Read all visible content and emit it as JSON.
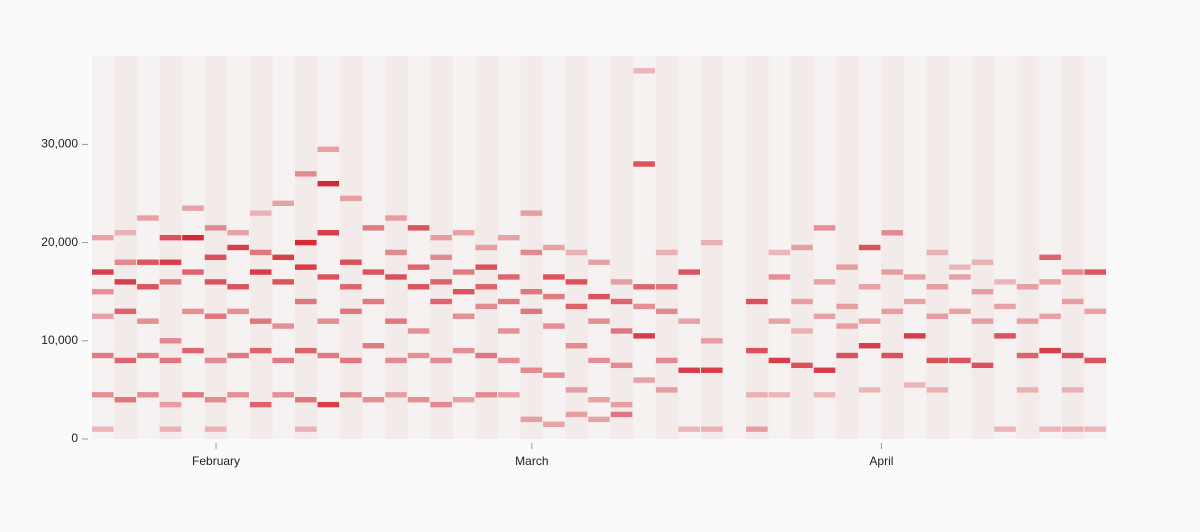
{
  "chart_data": {
    "type": "heatmap",
    "color": "#d42a37",
    "xlim": [
      0,
      90
    ],
    "xticks": [
      {
        "value": 11,
        "label": "February"
      },
      {
        "value": 39,
        "label": "March"
      },
      {
        "value": 70,
        "label": "April"
      }
    ],
    "ylim": [
      0,
      39000
    ],
    "yticks": [
      0,
      {
        "value": 10000,
        "label": "10,000"
      },
      {
        "value": 20000,
        "label": "20,000"
      },
      {
        "value": 30000,
        "label": "30,000"
      }
    ],
    "columns": [
      {
        "x": 0,
        "y": [
          17000,
          15000,
          12500,
          8500,
          4500,
          1000,
          20500
        ],
        "values": [
          0.9,
          0.5,
          0.4,
          0.6,
          0.5,
          0.3,
          0.4
        ]
      },
      {
        "x": 2,
        "y": [
          16000,
          18000,
          13000,
          8000,
          4000,
          21000
        ],
        "values": [
          0.9,
          0.5,
          0.7,
          0.7,
          0.6,
          0.3
        ]
      },
      {
        "x": 4,
        "y": [
          15500,
          18000,
          12000,
          8500,
          4500,
          22500
        ],
        "values": [
          0.8,
          0.8,
          0.5,
          0.6,
          0.5,
          0.4
        ]
      },
      {
        "x": 6,
        "y": [
          18000,
          16000,
          10000,
          8000,
          3500,
          20500,
          1000
        ],
        "values": [
          0.9,
          0.6,
          0.5,
          0.6,
          0.4,
          0.8,
          0.3
        ]
      },
      {
        "x": 8,
        "y": [
          20500,
          17000,
          13000,
          9000,
          4500,
          23500
        ],
        "values": [
          1,
          0.7,
          0.5,
          0.7,
          0.6,
          0.4
        ]
      },
      {
        "x": 10,
        "y": [
          16000,
          18500,
          12500,
          8000,
          4000,
          21500,
          1000
        ],
        "values": [
          0.8,
          0.8,
          0.6,
          0.5,
          0.5,
          0.5,
          0.3
        ]
      },
      {
        "x": 12,
        "y": [
          15500,
          19500,
          13000,
          8500,
          4500,
          21000
        ],
        "values": [
          0.8,
          0.9,
          0.5,
          0.6,
          0.5,
          0.4
        ]
      },
      {
        "x": 14,
        "y": [
          17000,
          19000,
          12000,
          9000,
          3500,
          23000
        ],
        "values": [
          0.9,
          0.6,
          0.6,
          0.7,
          0.7,
          0.3
        ]
      },
      {
        "x": 16,
        "y": [
          18500,
          16000,
          11500,
          8000,
          4500,
          24000
        ],
        "values": [
          0.9,
          0.8,
          0.5,
          0.6,
          0.5,
          0.4
        ]
      },
      {
        "x": 18,
        "y": [
          20000,
          17500,
          14000,
          9000,
          4000,
          27000,
          1000
        ],
        "values": [
          1,
          0.9,
          0.6,
          0.7,
          0.6,
          0.5,
          0.3
        ]
      },
      {
        "x": 20,
        "y": [
          26000,
          21000,
          16500,
          12000,
          8500,
          3500,
          29500
        ],
        "values": [
          1,
          0.9,
          0.8,
          0.5,
          0.6,
          0.9,
          0.4
        ]
      },
      {
        "x": 22,
        "y": [
          18000,
          15500,
          13000,
          8000,
          4500,
          24500
        ],
        "values": [
          0.8,
          0.7,
          0.6,
          0.6,
          0.5,
          0.4
        ]
      },
      {
        "x": 24,
        "y": [
          17000,
          21500,
          14000,
          9500,
          4000
        ],
        "values": [
          0.8,
          0.6,
          0.6,
          0.6,
          0.5
        ]
      },
      {
        "x": 26,
        "y": [
          16500,
          19000,
          12000,
          8000,
          4500,
          22500
        ],
        "values": [
          0.8,
          0.5,
          0.6,
          0.5,
          0.4,
          0.4
        ]
      },
      {
        "x": 28,
        "y": [
          15500,
          17500,
          11000,
          8500,
          4000,
          21500
        ],
        "values": [
          0.8,
          0.7,
          0.5,
          0.5,
          0.5,
          0.8
        ]
      },
      {
        "x": 30,
        "y": [
          16000,
          18500,
          14000,
          8000,
          3500,
          20500
        ],
        "values": [
          0.7,
          0.5,
          0.7,
          0.5,
          0.5,
          0.4
        ]
      },
      {
        "x": 32,
        "y": [
          15000,
          17000,
          12500,
          9000,
          4000,
          21000
        ],
        "values": [
          0.8,
          0.6,
          0.5,
          0.5,
          0.4,
          0.4
        ]
      },
      {
        "x": 34,
        "y": [
          15500,
          17500,
          13500,
          8500,
          4500,
          19500
        ],
        "values": [
          0.7,
          0.8,
          0.5,
          0.6,
          0.5,
          0.4
        ]
      },
      {
        "x": 36,
        "y": [
          16500,
          14000,
          11000,
          8000,
          4500,
          20500
        ],
        "values": [
          0.7,
          0.6,
          0.5,
          0.5,
          0.4,
          0.4
        ]
      },
      {
        "x": 38,
        "y": [
          15000,
          19000,
          13000,
          7000,
          2000,
          23000
        ],
        "values": [
          0.6,
          0.5,
          0.6,
          0.5,
          0.4,
          0.4
        ]
      },
      {
        "x": 40,
        "y": [
          16500,
          14500,
          11500,
          6500,
          1500,
          19500
        ],
        "values": [
          0.8,
          0.6,
          0.5,
          0.5,
          0.4,
          0.4
        ]
      },
      {
        "x": 42,
        "y": [
          16000,
          13500,
          9500,
          5000,
          2500,
          19000
        ],
        "values": [
          0.8,
          0.7,
          0.5,
          0.4,
          0.4,
          0.3
        ]
      },
      {
        "x": 44,
        "y": [
          14500,
          12000,
          8000,
          4000,
          2000,
          18000
        ],
        "values": [
          0.8,
          0.5,
          0.5,
          0.4,
          0.4,
          0.4
        ]
      },
      {
        "x": 46,
        "y": [
          14000,
          11000,
          7500,
          3500,
          2500,
          16000
        ],
        "values": [
          0.7,
          0.6,
          0.5,
          0.4,
          0.6,
          0.4
        ]
      },
      {
        "x": 48,
        "y": [
          10500,
          13500,
          15500,
          28000,
          6000,
          37500
        ],
        "values": [
          0.9,
          0.5,
          0.7,
          0.8,
          0.4,
          0.3
        ]
      },
      {
        "x": 50,
        "y": [
          13000,
          8000,
          15500,
          5000,
          19000
        ],
        "values": [
          0.5,
          0.5,
          0.6,
          0.4,
          0.3
        ]
      },
      {
        "x": 52,
        "y": [
          17000,
          7000,
          12000,
          1000
        ],
        "values": [
          0.8,
          0.9,
          0.4,
          0.3
        ]
      },
      {
        "x": 54,
        "y": [
          7000,
          20000,
          10000,
          1000
        ],
        "values": [
          0.9,
          0.3,
          0.4,
          0.3
        ]
      },
      {
        "x": 58,
        "y": [
          14000,
          9000,
          1000,
          4500
        ],
        "values": [
          0.8,
          0.8,
          0.4,
          0.3
        ]
      },
      {
        "x": 60,
        "y": [
          8000,
          16500,
          12000,
          4500,
          19000
        ],
        "values": [
          0.9,
          0.5,
          0.4,
          0.3,
          0.3
        ]
      },
      {
        "x": 62,
        "y": [
          7500,
          14000,
          19500,
          11000
        ],
        "values": [
          0.8,
          0.4,
          0.4,
          0.3
        ]
      },
      {
        "x": 64,
        "y": [
          7000,
          12500,
          21500,
          16000,
          4500
        ],
        "values": [
          0.9,
          0.4,
          0.5,
          0.4,
          0.3
        ]
      },
      {
        "x": 66,
        "y": [
          8500,
          11500,
          17500,
          13500
        ],
        "values": [
          0.8,
          0.4,
          0.4,
          0.4
        ]
      },
      {
        "x": 68,
        "y": [
          9500,
          12000,
          19500,
          15500,
          5000
        ],
        "values": [
          0.9,
          0.4,
          0.8,
          0.4,
          0.3
        ]
      },
      {
        "x": 70,
        "y": [
          8500,
          13000,
          17000,
          21000
        ],
        "values": [
          0.8,
          0.4,
          0.4,
          0.5
        ]
      },
      {
        "x": 72,
        "y": [
          10500,
          14000,
          16500,
          5500
        ],
        "values": [
          0.9,
          0.4,
          0.4,
          0.3
        ]
      },
      {
        "x": 74,
        "y": [
          8000,
          12500,
          15500,
          19000,
          5000
        ],
        "values": [
          0.8,
          0.4,
          0.4,
          0.3,
          0.3
        ]
      },
      {
        "x": 76,
        "y": [
          8000,
          13000,
          16500,
          17500
        ],
        "values": [
          0.8,
          0.4,
          0.4,
          0.3
        ]
      },
      {
        "x": 78,
        "y": [
          7500,
          12000,
          15000,
          18000
        ],
        "values": [
          0.8,
          0.4,
          0.4,
          0.3
        ]
      },
      {
        "x": 80,
        "y": [
          10500,
          13500,
          16000,
          1000
        ],
        "values": [
          0.8,
          0.4,
          0.3,
          0.3
        ]
      },
      {
        "x": 82,
        "y": [
          8500,
          12000,
          15500,
          5000
        ],
        "values": [
          0.7,
          0.4,
          0.4,
          0.3
        ]
      },
      {
        "x": 84,
        "y": [
          9000,
          12500,
          18500,
          16000,
          1000
        ],
        "values": [
          0.9,
          0.4,
          0.7,
          0.4,
          0.3
        ]
      },
      {
        "x": 86,
        "y": [
          8500,
          14000,
          17000,
          5000,
          1000
        ],
        "values": [
          0.8,
          0.4,
          0.5,
          0.3,
          0.3
        ]
      },
      {
        "x": 88,
        "y": [
          8000,
          13000,
          17000,
          1000
        ],
        "values": [
          0.8,
          0.4,
          0.8,
          0.3
        ]
      }
    ]
  }
}
